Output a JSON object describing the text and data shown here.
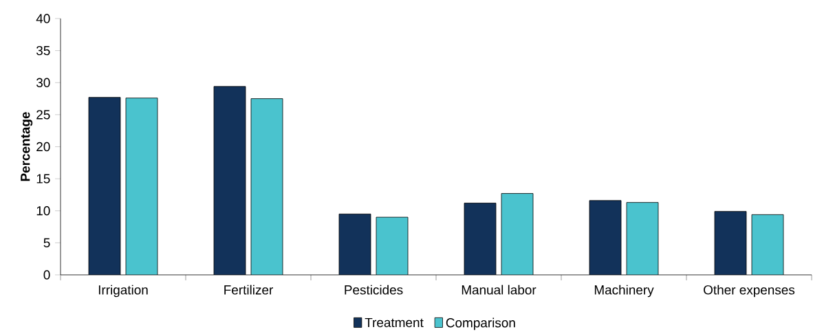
{
  "chart_data": {
    "type": "bar",
    "ylabel": "Percentage",
    "categories": [
      "Irrigation",
      "Fertilizer",
      "Pesticides",
      "Manual labor",
      "Machinery",
      "Other expenses"
    ],
    "series": [
      {
        "name": "Treatment",
        "color": "#12325a",
        "values": [
          27.7,
          29.4,
          9.5,
          11.2,
          11.6,
          9.9
        ]
      },
      {
        "name": "Comparison",
        "color": "#4ac3ce",
        "values": [
          27.6,
          27.5,
          9.0,
          12.7,
          11.3,
          9.4
        ]
      }
    ],
    "ylim": [
      0,
      40
    ],
    "yticks": [
      0,
      5,
      10,
      15,
      20,
      25,
      30,
      35,
      40
    ],
    "legend": "bottom"
  }
}
